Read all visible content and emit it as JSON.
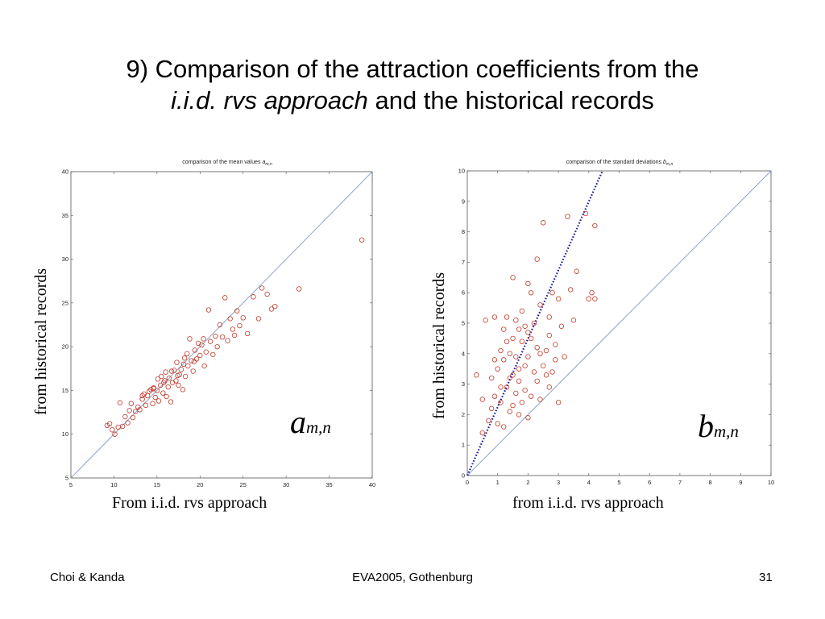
{
  "slide": {
    "title_line1": "9) Comparison of the attraction coefficients from the",
    "title_line2_italic": "i.i.d. rvs approach",
    "title_line2_rest": " and the historical records",
    "footer_left": "Choi & Kanda",
    "footer_center": "EVA2005, Gothenburg",
    "footer_right": "31"
  },
  "left": {
    "title_text": "comparison of the mean values ",
    "title_symbol": "a",
    "title_subscript": "m,n",
    "xlabel": "From i.i.d. rvs approach",
    "ylabel": "from historical records",
    "symbol": "a",
    "symbol_sub": "m,n"
  },
  "right": {
    "title_text": "comparison of the standard deviations ",
    "title_symbol": "b",
    "title_subscript": "m,n",
    "xlabel": "from i.i.d. rvs approach",
    "ylabel": "from historical records",
    "symbol": "b",
    "symbol_sub": "m,n"
  },
  "colors": {
    "marker": "#c0392b",
    "diagonal": "#8fa3c8",
    "fit_line": "#1a1aa6",
    "frame": "#555555"
  },
  "chart_data": [
    {
      "type": "scatter",
      "title": "comparison of the mean values a_{m,n}",
      "xlabel": "From i.i.d. rvs approach",
      "ylabel": "from historical records",
      "xlim": [
        5,
        40
      ],
      "ylim": [
        5,
        40
      ],
      "xticks": [
        5,
        10,
        15,
        20,
        25,
        30,
        35,
        40
      ],
      "yticks": [
        5,
        10,
        15,
        20,
        25,
        30,
        35,
        40
      ],
      "reference_line": "y = x",
      "points": [
        [
          9.2,
          11.0
        ],
        [
          9.5,
          11.2
        ],
        [
          9.8,
          10.5
        ],
        [
          10.1,
          10.0
        ],
        [
          10.5,
          10.8
        ],
        [
          10.7,
          13.6
        ],
        [
          11.0,
          10.9
        ],
        [
          11.3,
          12.0
        ],
        [
          11.6,
          11.3
        ],
        [
          11.8,
          12.7
        ],
        [
          12.0,
          13.5
        ],
        [
          12.2,
          11.9
        ],
        [
          12.5,
          12.6
        ],
        [
          12.8,
          13.1
        ],
        [
          13.0,
          12.8
        ],
        [
          13.3,
          14.0
        ],
        [
          13.5,
          14.6
        ],
        [
          13.7,
          13.3
        ],
        [
          13.9,
          14.4
        ],
        [
          14.1,
          14.9
        ],
        [
          14.3,
          15.1
        ],
        [
          14.5,
          13.5
        ],
        [
          14.6,
          15.3
        ],
        [
          14.8,
          14.2
        ],
        [
          15.0,
          15.0
        ],
        [
          15.1,
          16.3
        ],
        [
          15.2,
          13.8
        ],
        [
          15.4,
          15.6
        ],
        [
          15.5,
          16.6
        ],
        [
          15.7,
          14.7
        ],
        [
          15.8,
          15.9
        ],
        [
          16.0,
          17.1
        ],
        [
          16.1,
          14.3
        ],
        [
          16.3,
          15.4
        ],
        [
          16.4,
          16.4
        ],
        [
          16.6,
          13.7
        ],
        [
          16.8,
          15.9
        ],
        [
          17.0,
          17.3
        ],
        [
          17.2,
          16.1
        ],
        [
          17.3,
          18.2
        ],
        [
          17.5,
          15.6
        ],
        [
          17.6,
          16.8
        ],
        [
          17.8,
          17.4
        ],
        [
          18.0,
          15.1
        ],
        [
          18.1,
          18.0
        ],
        [
          18.3,
          16.6
        ],
        [
          18.5,
          19.2
        ],
        [
          18.6,
          17.8
        ],
        [
          18.8,
          20.9
        ],
        [
          19.0,
          18.4
        ],
        [
          19.2,
          17.2
        ],
        [
          19.4,
          19.6
        ],
        [
          19.6,
          18.6
        ],
        [
          19.8,
          20.4
        ],
        [
          20.0,
          19.0
        ],
        [
          20.2,
          20.2
        ],
        [
          20.5,
          17.8
        ],
        [
          20.7,
          19.4
        ],
        [
          21.0,
          24.2
        ],
        [
          21.2,
          20.6
        ],
        [
          21.5,
          19.1
        ],
        [
          21.8,
          21.2
        ],
        [
          22.0,
          20.0
        ],
        [
          22.3,
          22.5
        ],
        [
          22.6,
          21.1
        ],
        [
          22.9,
          25.6
        ],
        [
          23.2,
          20.7
        ],
        [
          23.5,
          23.2
        ],
        [
          23.8,
          22.0
        ],
        [
          24.0,
          21.3
        ],
        [
          24.3,
          24.1
        ],
        [
          24.6,
          22.4
        ],
        [
          25.0,
          23.3
        ],
        [
          25.5,
          21.5
        ],
        [
          26.2,
          25.7
        ],
        [
          26.8,
          23.2
        ],
        [
          27.2,
          26.7
        ],
        [
          27.8,
          26.0
        ],
        [
          28.3,
          24.3
        ],
        [
          28.7,
          24.6
        ],
        [
          31.5,
          26.6
        ],
        [
          38.8,
          32.2
        ],
        [
          13.3,
          14.4
        ],
        [
          14.6,
          15.2
        ],
        [
          15.9,
          16.1
        ],
        [
          16.7,
          17.2
        ],
        [
          17.4,
          16.7
        ],
        [
          18.2,
          18.7
        ],
        [
          19.3,
          18.3
        ],
        [
          20.4,
          20.9
        ]
      ]
    },
    {
      "type": "scatter",
      "title": "comparison of the standard deviations b_{m,n}",
      "xlabel": "from i.i.d. rvs approach",
      "ylabel": "from historical records",
      "xlim": [
        0,
        10
      ],
      "ylim": [
        0,
        10
      ],
      "xticks": [
        0,
        1,
        2,
        3,
        4,
        5,
        6,
        7,
        8,
        9,
        10
      ],
      "yticks": [
        0,
        1,
        2,
        3,
        4,
        5,
        6,
        7,
        8,
        9,
        10
      ],
      "reference_line": "y = x",
      "fit_line": {
        "x": [
          0,
          4.45
        ],
        "y": [
          0,
          10
        ]
      },
      "points": [
        [
          0.3,
          3.3
        ],
        [
          0.5,
          1.4
        ],
        [
          0.5,
          2.5
        ],
        [
          0.6,
          5.1
        ],
        [
          0.7,
          1.8
        ],
        [
          0.8,
          3.2
        ],
        [
          0.8,
          2.2
        ],
        [
          0.9,
          5.2
        ],
        [
          0.9,
          2.6
        ],
        [
          1.0,
          1.7
        ],
        [
          1.0,
          3.5
        ],
        [
          1.1,
          4.1
        ],
        [
          1.1,
          2.4
        ],
        [
          1.2,
          3.8
        ],
        [
          1.2,
          1.6
        ],
        [
          1.3,
          5.2
        ],
        [
          1.3,
          2.9
        ],
        [
          1.4,
          4.0
        ],
        [
          1.4,
          2.1
        ],
        [
          1.5,
          6.5
        ],
        [
          1.5,
          3.3
        ],
        [
          1.5,
          4.5
        ],
        [
          1.6,
          2.7
        ],
        [
          1.6,
          3.9
        ],
        [
          1.7,
          4.8
        ],
        [
          1.7,
          2.0
        ],
        [
          1.7,
          3.1
        ],
        [
          1.8,
          5.4
        ],
        [
          1.8,
          4.4
        ],
        [
          1.8,
          2.4
        ],
        [
          1.9,
          3.6
        ],
        [
          1.9,
          2.8
        ],
        [
          2.0,
          4.7
        ],
        [
          2.0,
          1.9
        ],
        [
          2.0,
          3.9
        ],
        [
          2.1,
          6.0
        ],
        [
          2.1,
          2.6
        ],
        [
          2.2,
          5.0
        ],
        [
          2.2,
          3.4
        ],
        [
          2.3,
          7.1
        ],
        [
          2.3,
          4.2
        ],
        [
          2.4,
          2.5
        ],
        [
          2.4,
          5.6
        ],
        [
          2.5,
          3.6
        ],
        [
          2.5,
          8.3
        ],
        [
          2.6,
          4.1
        ],
        [
          2.7,
          2.9
        ],
        [
          2.7,
          5.2
        ],
        [
          2.8,
          3.4
        ],
        [
          2.8,
          6.0
        ],
        [
          2.9,
          4.3
        ],
        [
          3.0,
          2.4
        ],
        [
          3.0,
          5.8
        ],
        [
          3.2,
          3.9
        ],
        [
          3.3,
          8.5
        ],
        [
          3.4,
          6.1
        ],
        [
          3.5,
          5.1
        ],
        [
          3.6,
          6.7
        ],
        [
          3.9,
          8.6
        ],
        [
          4.0,
          5.8
        ],
        [
          4.1,
          6.0
        ],
        [
          4.2,
          8.2
        ],
        [
          4.2,
          5.8
        ],
        [
          1.2,
          4.8
        ],
        [
          1.4,
          3.2
        ],
        [
          1.6,
          5.1
        ],
        [
          2.1,
          4.5
        ],
        [
          2.6,
          3.3
        ],
        [
          2.9,
          3.8
        ],
        [
          3.1,
          4.9
        ],
        [
          1.1,
          2.9
        ],
        [
          0.9,
          3.8
        ],
        [
          1.3,
          4.4
        ],
        [
          1.7,
          3.5
        ],
        [
          2.3,
          3.1
        ],
        [
          2.7,
          4.6
        ],
        [
          1.9,
          4.9
        ],
        [
          1.5,
          2.3
        ],
        [
          2.0,
          6.3
        ],
        [
          2.4,
          4.0
        ]
      ]
    }
  ]
}
